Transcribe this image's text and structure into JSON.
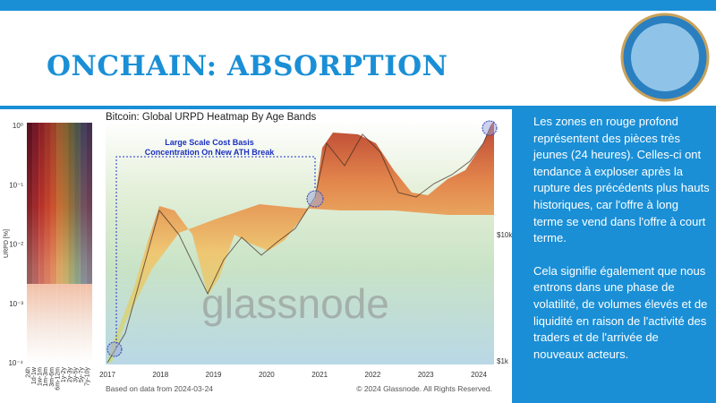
{
  "header": {
    "title": "ONCHAIN: ABSORPTION"
  },
  "chart": {
    "title": "Bitcoin: Global URPD Heatmap By Age Bands",
    "annotation": [
      "Large Scale Cost Basis",
      "Concentration On New ATH Break"
    ],
    "y_axis_label": "URPD [%]",
    "y_ticks": [
      "10⁰",
      "10⁻¹",
      "10⁻²",
      "10⁻³",
      "10⁻⁴"
    ],
    "x_ticks": [
      "2017",
      "2018",
      "2019",
      "2020",
      "2021",
      "2022",
      "2023",
      "2024"
    ],
    "price_ticks": [
      "$10k",
      "$1k"
    ],
    "legend": [
      "24h",
      "1d-1w",
      "1w-1m",
      "1m-3m",
      "3m-6m",
      "6m-12m",
      "1y-2y",
      "2y-3y",
      "3y-5y",
      "5y-7y",
      "7y-10y"
    ],
    "watermark": "glassnode",
    "source": "Based on data from 2024-03-24",
    "copyright": "© 2024 Glassnode. All Rights Reserved."
  },
  "body": {
    "paragraphs": [
      "Les zones en rouge profond représentent des pièces très jeunes (24 heures). Celles-ci ont tendance à exploser après la rupture des précédents plus hauts historiques, car l'offre à long terme se vend dans l'offre à court terme.",
      "Cela signifie également que nous entrons dans une phase de volatilité, de volumes élevés et de liquidité en raison de l'activité des traders et de l'arrivée de nouveaux acteurs."
    ]
  }
}
